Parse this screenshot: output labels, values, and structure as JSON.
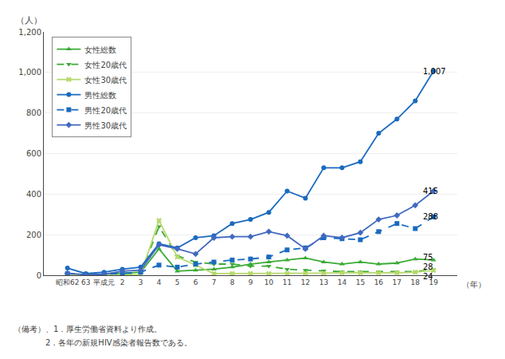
{
  "chart_data": {
    "type": "line",
    "ylabel": "（人）",
    "xlabel": "（年）",
    "categories": [
      "昭和62",
      "63",
      "平成元",
      "2",
      "3",
      "4",
      "5",
      "6",
      "7",
      "8",
      "9",
      "10",
      "11",
      "12",
      "13",
      "14",
      "15",
      "16",
      "17",
      "18",
      "19"
    ],
    "series": [
      {
        "name": "女性総数",
        "color": "#3aaa35",
        "line_style": "solid",
        "marker": "triangle-up",
        "values": [
          5,
          3,
          5,
          10,
          15,
          130,
          20,
          25,
          30,
          40,
          55,
          65,
          75,
          85,
          65,
          55,
          65,
          55,
          60,
          80,
          75
        ]
      },
      {
        "name": "女性20歳代",
        "color": "#3aaa35",
        "line_style": "dashed",
        "marker": "triangle-down",
        "values": [
          2,
          1,
          2,
          5,
          8,
          240,
          95,
          65,
          55,
          55,
          45,
          45,
          30,
          25,
          22,
          18,
          18,
          18,
          16,
          18,
          28
        ]
      },
      {
        "name": "女性30歳代",
        "color": "#b5d96b",
        "line_style": "solid",
        "marker": "x",
        "values": [
          1,
          1,
          1,
          2,
          3,
          270,
          90,
          50,
          8,
          8,
          8,
          8,
          8,
          10,
          10,
          12,
          12,
          12,
          12,
          15,
          24
        ]
      },
      {
        "name": "男性総数",
        "color": "#1a6abf",
        "line_style": "solid",
        "marker": "circle",
        "values": [
          35,
          8,
          15,
          30,
          40,
          155,
          135,
          185,
          195,
          255,
          275,
          310,
          415,
          380,
          530,
          530,
          560,
          700,
          770,
          860,
          1007
        ]
      },
      {
        "name": "男性20歳代",
        "color": "#1a6abf",
        "line_style": "dashed",
        "marker": "square",
        "values": [
          8,
          3,
          5,
          10,
          15,
          50,
          40,
          55,
          65,
          75,
          80,
          90,
          125,
          135,
          185,
          180,
          175,
          215,
          255,
          230,
          288
        ]
      },
      {
        "name": "男性30歳代",
        "color": "#4169c0",
        "line_style": "solid",
        "marker": "diamond",
        "values": [
          10,
          2,
          5,
          20,
          25,
          150,
          130,
          105,
          185,
          190,
          190,
          215,
          195,
          130,
          195,
          185,
          210,
          275,
          295,
          345,
          415
        ]
      }
    ],
    "ylim": [
      0,
      1200
    ],
    "yticks": [
      0,
      200,
      400,
      600,
      800,
      {
        "value": 1000,
        "label": "1,000"
      },
      {
        "value": 1200,
        "label": "1,200"
      }
    ],
    "annotations": [
      {
        "text": "1,007",
        "series": "男性総数"
      },
      {
        "text": "415",
        "series": "男性30歳代"
      },
      {
        "text": "288",
        "series": "男性20歳代"
      },
      {
        "text": "75",
        "series": "女性総数"
      },
      {
        "text": "28",
        "series": "女性20歳代"
      },
      {
        "text": "24",
        "series": "女性30歳代"
      }
    ],
    "footnotes": [
      "（備考）、1．厚生労働省資料より作成。",
      "　　　　2．各年の新規HIV感染者報告数である。"
    ],
    "grid": true,
    "legend": "upper left"
  }
}
